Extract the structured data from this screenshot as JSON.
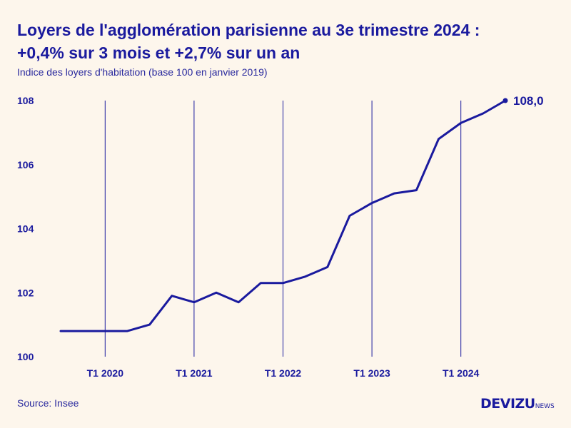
{
  "header": {
    "title_line1": "Loyers de l'agglomération parisienne au 3e trimestre 2024 :",
    "title_line2": "+0,4% sur 3 mois et +2,7% sur un an",
    "subtitle": "Indice des loyers d'habitation (base 100 en janvier 2019)"
  },
  "footer": {
    "source": "Source: Insee",
    "logo_main": "DEVIZU",
    "logo_sub": "NEWS"
  },
  "colors": {
    "background": "#fdf6ec",
    "line": "#1a1a9e",
    "gridline": "#1a1a9e"
  },
  "chart_data": {
    "type": "line",
    "title": "Loyers de l'agglomération parisienne au 3e trimestre 2024 : +0,4% sur 3 mois et +2,7% sur un an",
    "subtitle": "Indice des loyers d'habitation (base 100 en janvier 2019)",
    "xlabel": "",
    "ylabel": "",
    "ylim": [
      100,
      108
    ],
    "yticks": [
      {
        "value": 100,
        "label": "100"
      },
      {
        "value": 102,
        "label": "102"
      },
      {
        "value": 104,
        "label": "104"
      },
      {
        "value": 106,
        "label": "106"
      },
      {
        "value": 108,
        "label": "108"
      }
    ],
    "xticks": [
      {
        "quarter": "2020-T1",
        "label": "T1 2020"
      },
      {
        "quarter": "2021-T1",
        "label": "T1 2021"
      },
      {
        "quarter": "2022-T1",
        "label": "T1 2022"
      },
      {
        "quarter": "2023-T1",
        "label": "T1 2023"
      },
      {
        "quarter": "2024-T1",
        "label": "T1 2024"
      }
    ],
    "grid": "vertical lines at T1 of each year",
    "x": [
      "2019-T3",
      "2019-T4",
      "2020-T1",
      "2020-T2",
      "2020-T3",
      "2020-T4",
      "2021-T1",
      "2021-T2",
      "2021-T3",
      "2021-T4",
      "2022-T1",
      "2022-T2",
      "2022-T3",
      "2022-T4",
      "2023-T1",
      "2023-T2",
      "2023-T3",
      "2023-T4",
      "2024-T1",
      "2024-T2",
      "2024-T3"
    ],
    "series": [
      {
        "values": [
          100.8,
          100.8,
          100.8,
          100.8,
          101.0,
          101.9,
          101.7,
          102.0,
          101.7,
          102.3,
          102.3,
          102.5,
          102.8,
          104.4,
          104.8,
          105.1,
          105.2,
          106.8,
          107.3,
          107.6,
          108.0
        ]
      }
    ],
    "end_label": "108,0"
  }
}
